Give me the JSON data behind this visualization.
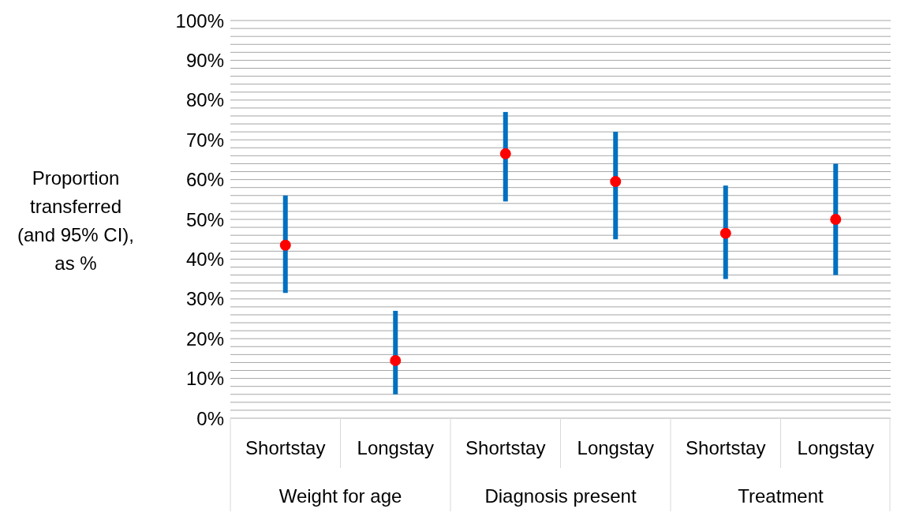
{
  "chart_data": {
    "type": "scatter",
    "ylabel": "Proportion transferred (and 95% CI), as %",
    "categories": [
      "Shortstay",
      "Longstay",
      "Shortstay",
      "Longstay",
      "Shortstay",
      "Longstay"
    ],
    "annotations": [
      "Weight for age",
      "Diagnosis present",
      "Treatment"
    ],
    "series": [
      {
        "color": "#ff0000",
        "values": [
          43.5,
          14.5,
          66.5,
          59.5,
          46.5,
          50
        ],
        "errors": [
          [
            31.5,
            56
          ],
          [
            6,
            27
          ],
          [
            54.5,
            77
          ],
          [
            45,
            72
          ],
          [
            35,
            58.5
          ],
          [
            36,
            64
          ]
        ]
      }
    ],
    "marker": "circle",
    "grid": "y",
    "legend": false,
    "ylim": [
      0,
      100
    ],
    "yticks": [
      {
        "value": 0,
        "label": "0%"
      },
      {
        "value": 2,
        "label": null
      },
      {
        "value": 4,
        "label": null
      },
      {
        "value": 6,
        "label": null
      },
      {
        "value": 8,
        "label": null
      },
      {
        "value": 10,
        "label": "10%"
      },
      {
        "value": 12,
        "label": null
      },
      {
        "value": 14,
        "label": null
      },
      {
        "value": 16,
        "label": null
      },
      {
        "value": 18,
        "label": null
      },
      {
        "value": 20,
        "label": "20%"
      },
      {
        "value": 22,
        "label": null
      },
      {
        "value": 24,
        "label": null
      },
      {
        "value": 26,
        "label": null
      },
      {
        "value": 28,
        "label": null
      },
      {
        "value": 30,
        "label": "30%"
      },
      {
        "value": 32,
        "label": null
      },
      {
        "value": 34,
        "label": null
      },
      {
        "value": 36,
        "label": null
      },
      {
        "value": 38,
        "label": null
      },
      {
        "value": 40,
        "label": "40%"
      },
      {
        "value": 42,
        "label": null
      },
      {
        "value": 44,
        "label": null
      },
      {
        "value": 46,
        "label": null
      },
      {
        "value": 48,
        "label": null
      },
      {
        "value": 50,
        "label": "50%"
      },
      {
        "value": 52,
        "label": null
      },
      {
        "value": 54,
        "label": null
      },
      {
        "value": 56,
        "label": null
      },
      {
        "value": 58,
        "label": null
      },
      {
        "value": 60,
        "label": "60%"
      },
      {
        "value": 62,
        "label": null
      },
      {
        "value": 64,
        "label": null
      },
      {
        "value": 66,
        "label": null
      },
      {
        "value": 68,
        "label": null
      },
      {
        "value": 70,
        "label": "70%"
      },
      {
        "value": 72,
        "label": null
      },
      {
        "value": 74,
        "label": null
      },
      {
        "value": 76,
        "label": null
      },
      {
        "value": 78,
        "label": null
      },
      {
        "value": 80,
        "label": "80%"
      },
      {
        "value": 82,
        "label": null
      },
      {
        "value": 84,
        "label": null
      },
      {
        "value": 86,
        "label": null
      },
      {
        "value": 88,
        "label": null
      },
      {
        "value": 90,
        "label": "90%"
      },
      {
        "value": 92,
        "label": null
      },
      {
        "value": 94,
        "label": null
      },
      {
        "value": 96,
        "label": null
      },
      {
        "value": 98,
        "label": null
      },
      {
        "value": 100,
        "label": "100%"
      }
    ]
  }
}
